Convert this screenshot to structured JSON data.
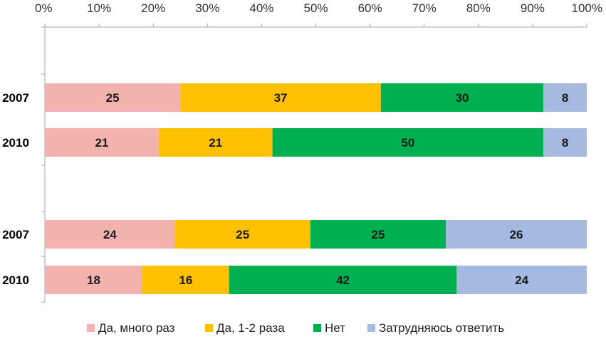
{
  "chart_data": {
    "type": "bar",
    "orientation": "horizontal",
    "stacked": "percent",
    "x_ticks": [
      "0%",
      "10%",
      "20%",
      "30%",
      "40%",
      "50%",
      "60%",
      "70%",
      "80%",
      "90%",
      "100%"
    ],
    "xlim": [
      0,
      100
    ],
    "x_axis_position": "top",
    "categories": [
      "2007",
      "2010",
      "2007",
      "2010"
    ],
    "groups": [
      {
        "rows": [
          0,
          1
        ]
      },
      {
        "rows": [
          2,
          3
        ]
      }
    ],
    "series": [
      {
        "name": "Да, много раз",
        "color": "#F2B2AE",
        "values": [
          25,
          21,
          24,
          18
        ]
      },
      {
        "name": "Да, 1-2 раза",
        "color": "#FFC000",
        "values": [
          37,
          21,
          25,
          16
        ]
      },
      {
        "name": "Нет",
        "color": "#00B050",
        "values": [
          30,
          50,
          25,
          42
        ]
      },
      {
        "name": "Затрудняюсь ответить",
        "color": "#A6B9DE",
        "values": [
          8,
          8,
          26,
          24
        ]
      }
    ],
    "data_labels": true,
    "grid": false,
    "legend_position": "bottom"
  }
}
